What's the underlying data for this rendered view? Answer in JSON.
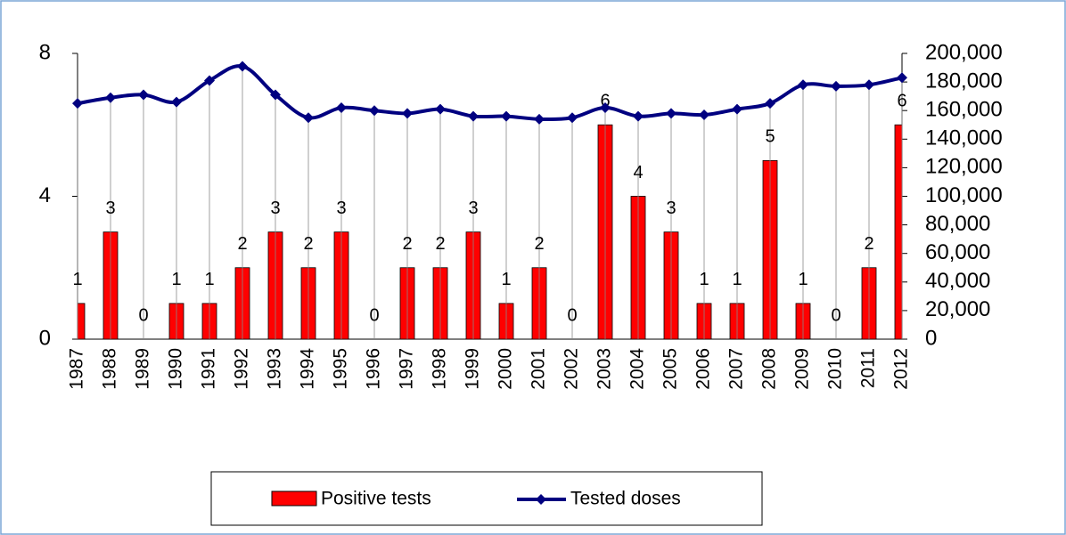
{
  "chart_data": {
    "type": "bar_line",
    "categories": [
      "1987",
      "1988",
      "1989",
      "1990",
      "1991",
      "1992",
      "1993",
      "1994",
      "1995",
      "1996",
      "1997",
      "1998",
      "1999",
      "2000",
      "2001",
      "2002",
      "2003",
      "2004",
      "2005",
      "2006",
      "2007",
      "2008",
      "2009",
      "2010",
      "2011",
      "2012"
    ],
    "series": [
      {
        "name": "Positive tests",
        "type": "bar",
        "color": "#ff0000",
        "axis": "y",
        "values": [
          1,
          3,
          0,
          1,
          1,
          2,
          3,
          2,
          3,
          0,
          2,
          2,
          3,
          1,
          2,
          0,
          6,
          4,
          3,
          1,
          1,
          5,
          1,
          0,
          2,
          6
        ]
      },
      {
        "name": "Tested doses",
        "type": "line",
        "color": "#000080",
        "axis": "y2",
        "values": [
          165000,
          169000,
          171000,
          166000,
          181000,
          191000,
          171000,
          155000,
          162000,
          160000,
          158000,
          161000,
          156000,
          156000,
          154000,
          155000,
          162000,
          156000,
          158000,
          157000,
          161000,
          165000,
          178000,
          177000,
          178000,
          183000
        ]
      }
    ],
    "ylim": [
      0,
      8
    ],
    "yticks": [
      0,
      4,
      8
    ],
    "y2lim": [
      0,
      200000
    ],
    "y2ticks": [
      0,
      {
        "value": 20000,
        "label": "20,000"
      },
      {
        "value": 40000,
        "label": "40,000"
      },
      {
        "value": 60000,
        "label": "60,000"
      },
      {
        "value": 80000,
        "label": "80,000"
      },
      {
        "value": 100000,
        "label": "100,000"
      },
      {
        "value": 120000,
        "label": "120,000"
      },
      {
        "value": 140000,
        "label": "140,000"
      },
      {
        "value": 160000,
        "label": "160,000"
      },
      {
        "value": 180000,
        "label": "180,000"
      },
      {
        "value": 200000,
        "label": "200,000"
      }
    ],
    "legend": "bottom"
  }
}
